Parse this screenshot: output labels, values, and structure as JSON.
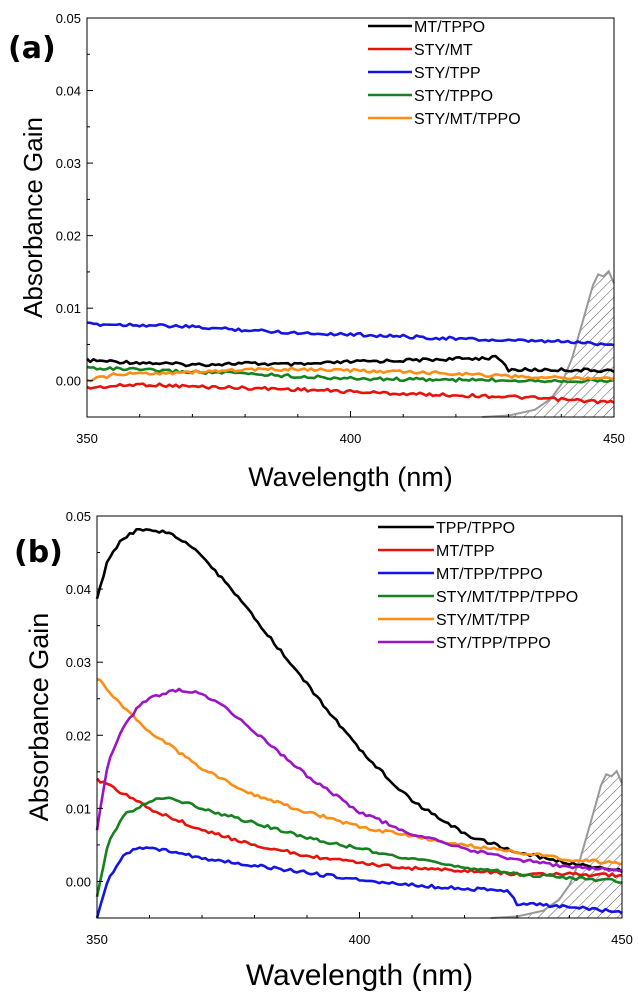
{
  "chart_data": [
    {
      "type": "line",
      "panel_label": "(a)",
      "xlabel": "Wavelength (nm)",
      "ylabel": "Absorbance Gain",
      "xlim": [
        350,
        450
      ],
      "ylim": [
        -0.005,
        0.05
      ],
      "xticks": [
        "350",
        "400",
        "450"
      ],
      "yticks": [
        "0.00",
        "0.01",
        "0.02",
        "0.03",
        "0.04",
        "0.05"
      ],
      "legend_position": "top-right",
      "series": [
        {
          "name": "MT/TPPO",
          "color": "#000000",
          "x": [
            350,
            360,
            370,
            380,
            390,
            400,
            410,
            420,
            428,
            430,
            440,
            450
          ],
          "y": [
            0.0028,
            0.0025,
            0.0022,
            0.0024,
            0.0022,
            0.0026,
            0.0028,
            0.003,
            0.0032,
            0.0015,
            0.0015,
            0.0014
          ]
        },
        {
          "name": "STY/MT",
          "color": "#e8120c",
          "x": [
            350,
            360,
            370,
            380,
            390,
            400,
            410,
            420,
            430,
            440,
            450
          ],
          "y": [
            -0.001,
            -0.0005,
            -0.0008,
            -0.001,
            -0.0012,
            -0.0015,
            -0.0018,
            -0.002,
            -0.0022,
            -0.0026,
            -0.003
          ]
        },
        {
          "name": "STY/TPP",
          "color": "#1414e6",
          "x": [
            350,
            360,
            370,
            380,
            390,
            400,
            410,
            420,
            430,
            440,
            450
          ],
          "y": [
            0.0078,
            0.0077,
            0.0074,
            0.007,
            0.0066,
            0.0064,
            0.0061,
            0.0058,
            0.0055,
            0.0054,
            0.005
          ]
        },
        {
          "name": "STY/TPPO",
          "color": "#14821e",
          "x": [
            350,
            360,
            370,
            380,
            390,
            400,
            410,
            420,
            430,
            440,
            450
          ],
          "y": [
            0.0018,
            0.0015,
            0.0012,
            0.001,
            0.0006,
            0.0003,
            0.0002,
            0.0001,
            0.0001,
            0.0,
            0.0
          ]
        },
        {
          "name": "STY/MT/TPPO",
          "color": "#ff8c14",
          "x": [
            350,
            355,
            360,
            370,
            380,
            390,
            400,
            410,
            420,
            430,
            440,
            450
          ],
          "y": [
            0.0,
            0.0008,
            0.001,
            0.0012,
            0.0015,
            0.0016,
            0.0014,
            0.0012,
            0.001,
            0.0006,
            0.0004,
            0.0003
          ]
        }
      ],
      "hatched_band": {
        "color": "#999999",
        "x": [
          425,
          430,
          435,
          438,
          440,
          442,
          444,
          446,
          447,
          448,
          449,
          450
        ],
        "y": [
          -0.005,
          -0.0048,
          -0.004,
          -0.0025,
          -0.0005,
          0.003,
          0.008,
          0.013,
          0.0148,
          0.0142,
          0.015,
          0.0135
        ]
      }
    },
    {
      "type": "line",
      "panel_label": "(b)",
      "xlabel": "Wavelength (nm)",
      "ylabel": "Absorbance Gain",
      "xlim": [
        350,
        450
      ],
      "ylim": [
        -0.005,
        0.05
      ],
      "xticks": [
        "350",
        "400",
        "450"
      ],
      "yticks": [
        "0.00",
        "0.01",
        "0.02",
        "0.03",
        "0.04",
        "0.05"
      ],
      "legend_position": "top-right",
      "series": [
        {
          "name": "TPP/TPPO",
          "color": "#000000",
          "x": [
            350,
            352,
            355,
            358,
            360,
            363,
            366,
            370,
            375,
            380,
            390,
            400,
            410,
            420,
            430,
            440,
            450
          ],
          "y": [
            0.0385,
            0.044,
            0.047,
            0.0482,
            0.0482,
            0.0478,
            0.0468,
            0.0445,
            0.0405,
            0.036,
            0.027,
            0.018,
            0.011,
            0.0065,
            0.004,
            0.0025,
            0.0015
          ]
        },
        {
          "name": "MT/TPP",
          "color": "#e8120c",
          "x": [
            350,
            355,
            360,
            370,
            380,
            390,
            400,
            410,
            420,
            430,
            440,
            450
          ],
          "y": [
            0.014,
            0.012,
            0.01,
            0.007,
            0.005,
            0.0035,
            0.0025,
            0.0018,
            0.0015,
            0.001,
            0.001,
            0.0008
          ]
        },
        {
          "name": "MT/TPP/TPPO",
          "color": "#1414e6",
          "x": [
            350,
            352,
            355,
            358,
            360,
            365,
            370,
            380,
            390,
            400,
            410,
            420,
            428,
            430,
            440,
            450
          ],
          "y": [
            -0.005,
            0.0,
            0.0035,
            0.0048,
            0.0045,
            0.004,
            0.0032,
            0.0022,
            0.0012,
            0.0002,
            -0.0005,
            -0.001,
            -0.0012,
            -0.003,
            -0.0035,
            -0.0042
          ]
        },
        {
          "name": "STY/MT/TPP/TPPO",
          "color": "#14821e",
          "x": [
            350,
            352,
            355,
            360,
            363,
            366,
            370,
            380,
            390,
            400,
            410,
            420,
            430,
            440,
            450
          ],
          "y": [
            -0.002,
            0.005,
            0.009,
            0.011,
            0.0115,
            0.011,
            0.01,
            0.008,
            0.006,
            0.0045,
            0.003,
            0.002,
            0.001,
            0.0005,
            0.0
          ]
        },
        {
          "name": "STY/MT/TPP",
          "color": "#ff8c14",
          "x": [
            350,
            355,
            360,
            370,
            380,
            390,
            400,
            410,
            420,
            430,
            440,
            450
          ],
          "y": [
            0.0278,
            0.024,
            0.0205,
            0.0155,
            0.0118,
            0.0095,
            0.0075,
            0.0062,
            0.005,
            0.004,
            0.003,
            0.0025
          ]
        },
        {
          "name": "STY/TPP/TPPO",
          "color": "#9b14c8",
          "x": [
            350,
            352,
            355,
            358,
            360,
            363,
            366,
            369,
            372,
            375,
            380,
            390,
            400,
            410,
            420,
            430,
            440,
            450
          ],
          "y": [
            0.007,
            0.016,
            0.021,
            0.024,
            0.025,
            0.0258,
            0.0262,
            0.0258,
            0.025,
            0.0235,
            0.0205,
            0.0145,
            0.0095,
            0.0065,
            0.0045,
            0.003,
            0.002,
            0.0015
          ]
        }
      ],
      "hatched_band": {
        "color": "#999999",
        "x": [
          425,
          430,
          435,
          438,
          440,
          442,
          444,
          446,
          447,
          448,
          449,
          450
        ],
        "y": [
          -0.005,
          -0.0048,
          -0.004,
          -0.0025,
          -0.0005,
          0.003,
          0.008,
          0.013,
          0.0148,
          0.0142,
          0.015,
          0.0135
        ]
      }
    }
  ]
}
